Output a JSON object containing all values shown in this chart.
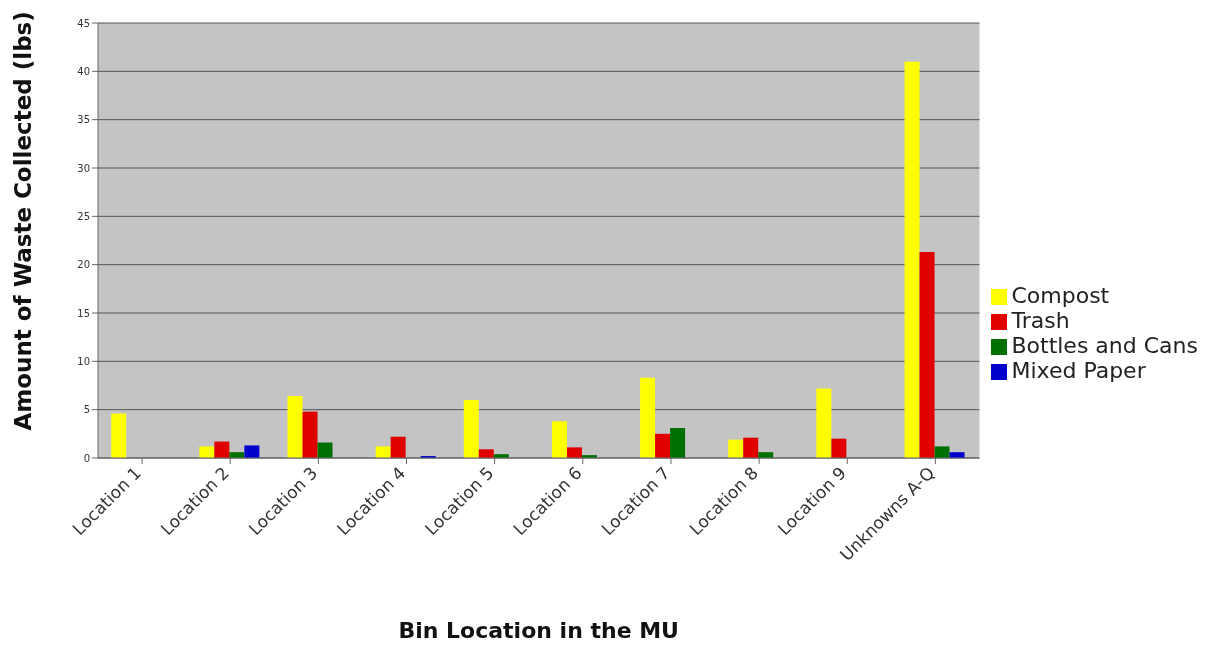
{
  "chart_data": {
    "type": "bar",
    "xlabel": "Bin Location in the MU",
    "ylabel": "Amount of Waste Collected (lbs)",
    "categories": [
      "Location 1",
      "Location 2",
      "Location 3",
      "Location 4",
      "Location 5",
      "Location 6",
      "Location 7",
      "Location 8",
      "Location 9",
      "Unknowns A-Q"
    ],
    "series": [
      {
        "name": "Compost",
        "color": "#ffff00",
        "values": [
          4.6,
          1.2,
          6.4,
          1.2,
          6,
          3.8,
          8.3,
          1.9,
          7.2,
          41
        ]
      },
      {
        "name": "Trash",
        "color": "#e00000",
        "values": [
          0,
          1.7,
          4.8,
          2.2,
          0.9,
          1.1,
          2.5,
          2.1,
          2,
          21.3
        ]
      },
      {
        "name": "Bottles and Cans",
        "color": "#007000",
        "values": [
          0,
          0.6,
          1.6,
          0,
          0.4,
          0.3,
          3.1,
          0.6,
          0,
          1.2
        ]
      },
      {
        "name": "Mixed Paper",
        "color": "#0000cc",
        "values": [
          0,
          1.3,
          0,
          0.2,
          0,
          0,
          0,
          0,
          0,
          0.6
        ]
      }
    ],
    "ylim": [
      0,
      45
    ],
    "yticks": [
      0,
      5,
      10,
      15,
      20,
      25,
      30,
      35,
      40,
      45
    ],
    "grid": "y",
    "legend": "right"
  }
}
